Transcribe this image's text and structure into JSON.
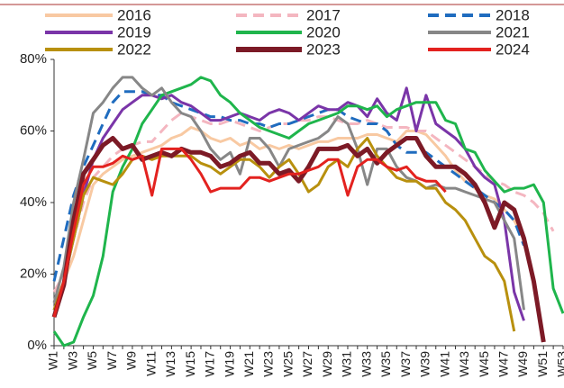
{
  "chart_data": {
    "type": "line",
    "categories": [
      "W1",
      null,
      "W3",
      null,
      "W5",
      null,
      "W7",
      null,
      "W9",
      null,
      "W11",
      null,
      "W13",
      null,
      "W15",
      null,
      "W17",
      null,
      "W19",
      null,
      "W21",
      null,
      "W23",
      null,
      "W25",
      null,
      "W27",
      null,
      "W29",
      null,
      "W31",
      null,
      "W33",
      null,
      "W35",
      null,
      "W37",
      null,
      "W39",
      null,
      "W41",
      null,
      "W43",
      null,
      "W45",
      null,
      "W47",
      null,
      "W49",
      null,
      "W51",
      null,
      "W53"
    ],
    "ylim": [
      0,
      80
    ],
    "yticks": [
      {
        "value": 0,
        "label": "0%"
      },
      {
        "value": 20,
        "label": "20%"
      },
      {
        "value": 40,
        "label": "40%"
      },
      {
        "value": 60,
        "label": "60%"
      },
      {
        "value": 80,
        "label": "80%"
      }
    ],
    "legend": "top",
    "series": [
      {
        "name": "2016",
        "color": "#f8c9a2",
        "dashed": false,
        "width": 3,
        "values": [
          12,
          18,
          25,
          35,
          45,
          48,
          50,
          52,
          53,
          54,
          55,
          56,
          58,
          59,
          61,
          60,
          58,
          57,
          58,
          56,
          57,
          55,
          56,
          55,
          56,
          55,
          56,
          57,
          57,
          58,
          58,
          58,
          59,
          59,
          58,
          57,
          60,
          60,
          59,
          56,
          53,
          49,
          46,
          44,
          42,
          41,
          38,
          35,
          30,
          null,
          null,
          null,
          null
        ]
      },
      {
        "name": "2017",
        "color": "#f4b6c0",
        "dashed": true,
        "width": 3,
        "values": [
          15,
          20,
          30,
          40,
          47,
          50,
          53,
          55,
          56,
          57,
          57,
          60,
          63,
          65,
          64,
          63,
          62,
          62,
          63,
          62,
          61,
          60,
          61,
          62,
          62,
          63,
          63,
          64,
          64,
          63,
          62,
          62,
          63,
          62,
          61,
          61,
          61,
          60,
          60,
          58,
          56,
          54,
          52,
          50,
          48,
          46,
          45,
          43,
          42,
          40,
          37,
          32,
          null
        ]
      },
      {
        "name": "2018",
        "color": "#1f6cbf",
        "dashed": true,
        "width": 3,
        "values": [
          18,
          30,
          42,
          50,
          56,
          62,
          68,
          71,
          71,
          71,
          70,
          70,
          68,
          67,
          66,
          65,
          64,
          64,
          63,
          63,
          62,
          62,
          61,
          62,
          62,
          63,
          64,
          65,
          66,
          66,
          64,
          63,
          62,
          62,
          60,
          56,
          54,
          54,
          54,
          52,
          50,
          48,
          46,
          44,
          42,
          40,
          38,
          35,
          28,
          null,
          null,
          null,
          null
        ]
      },
      {
        "name": "2019",
        "color": "#7a35a8",
        "dashed": false,
        "width": 3,
        "values": [
          10,
          18,
          30,
          42,
          52,
          58,
          62,
          66,
          68,
          70,
          70,
          69,
          70,
          68,
          67,
          65,
          63,
          63,
          64,
          65,
          64,
          63,
          65,
          66,
          65,
          63,
          65,
          67,
          66,
          66,
          68,
          67,
          64,
          69,
          65,
          63,
          72,
          60,
          70,
          62,
          60,
          58,
          55,
          50,
          47,
          45,
          35,
          15,
          7,
          null,
          null,
          null,
          null
        ]
      },
      {
        "name": "2020",
        "color": "#1fb54c",
        "dashed": false,
        "width": 3,
        "values": [
          4,
          0,
          1,
          8,
          14,
          25,
          43,
          50,
          55,
          62,
          66,
          70,
          71,
          72,
          73,
          75,
          74,
          70,
          68,
          65,
          63,
          61,
          60,
          59,
          58,
          60,
          62,
          63,
          64,
          65,
          67,
          67,
          66,
          67,
          64,
          66,
          67,
          68,
          68,
          68,
          63,
          62,
          55,
          54,
          49,
          46,
          43,
          44,
          44,
          45,
          40,
          16,
          9
        ]
      },
      {
        "name": "2021",
        "color": "#878787",
        "dashed": false,
        "width": 3,
        "values": [
          12,
          22,
          40,
          52,
          65,
          68,
          72,
          75,
          75,
          72,
          70,
          72,
          68,
          65,
          64,
          60,
          55,
          52,
          54,
          48,
          58,
          58,
          55,
          50,
          55,
          56,
          57,
          58,
          60,
          64,
          62,
          55,
          45,
          55,
          55,
          50,
          47,
          46,
          44,
          45,
          44,
          44,
          43,
          42,
          41,
          40,
          35,
          30,
          10,
          null,
          null,
          null,
          null
        ]
      },
      {
        "name": "2022",
        "color": "#b8900e",
        "dashed": false,
        "width": 3,
        "values": [
          10,
          18,
          30,
          42,
          47,
          46,
          45,
          48,
          52,
          53,
          52,
          53,
          53,
          53,
          53,
          51,
          50,
          48,
          50,
          52,
          52,
          50,
          47,
          50,
          52,
          48,
          43,
          45,
          50,
          52,
          50,
          55,
          58,
          53,
          50,
          47,
          46,
          46,
          44,
          44,
          40,
          38,
          35,
          30,
          25,
          23,
          18,
          4,
          null,
          null,
          null,
          null,
          null
        ]
      },
      {
        "name": "2023",
        "color": "#7c1a26",
        "dashed": false,
        "width": 5,
        "values": [
          8,
          17,
          35,
          48,
          52,
          56,
          58,
          55,
          56,
          52,
          53,
          54,
          53,
          55,
          54,
          54,
          53,
          50,
          51,
          53,
          54,
          51,
          51,
          48,
          49,
          46,
          50,
          55,
          55,
          55,
          56,
          53,
          55,
          51,
          54,
          56,
          58,
          58,
          53,
          50,
          50,
          50,
          48,
          45,
          40,
          33,
          40,
          38,
          30,
          18,
          1,
          null,
          null
        ]
      },
      {
        "name": "2024",
        "color": "#e3221f",
        "dashed": false,
        "width": 3,
        "values": [
          8,
          18,
          32,
          45,
          50,
          50,
          51,
          53,
          52,
          53,
          42,
          55,
          55,
          55,
          52,
          48,
          43,
          44,
          44,
          44,
          47,
          47,
          46,
          47,
          48,
          48,
          49,
          50,
          52,
          52,
          42,
          50,
          52,
          52,
          50,
          49,
          50,
          47,
          46,
          46,
          43,
          null,
          null,
          null,
          null,
          null,
          null,
          null,
          null,
          null,
          null,
          null,
          null
        ]
      }
    ]
  }
}
